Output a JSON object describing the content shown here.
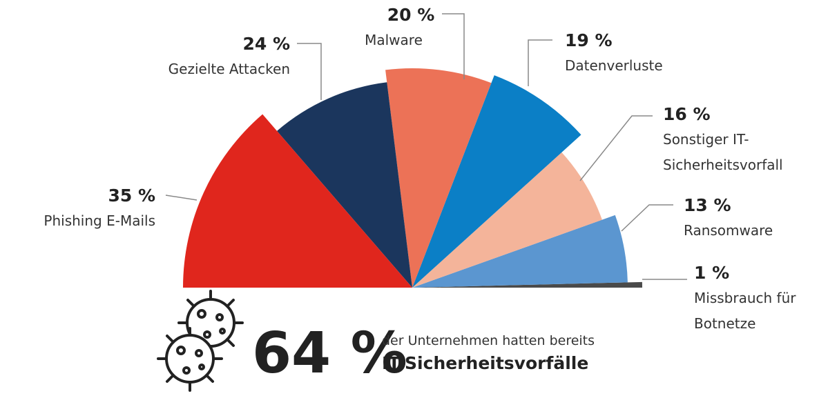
{
  "chart_data": {
    "type": "semi-rose",
    "categories": [
      "Phishing E-Mails",
      "Gezielte Attacken",
      "Malware",
      "Datenverluste",
      "Sonstiger IT-Sicherheitsvorfall",
      "Ransomware",
      "Missbrauch für Botnetze"
    ],
    "values": [
      35,
      24,
      20,
      19,
      16,
      13,
      1
    ],
    "value_labels": [
      "35 %",
      "24 %",
      "20 %",
      "19 %",
      "16 %",
      "13 %",
      "1 %"
    ],
    "colors": [
      "#e0261d",
      "#1b365d",
      "#ec7257",
      "#0b7fc6",
      "#f4b49a",
      "#5b96d0",
      "#4a4a4a"
    ],
    "annotations": [
      "64 %",
      "der Unternehmen hatten bereits",
      "IT-Sicherheitsvorfälle"
    ]
  }
}
